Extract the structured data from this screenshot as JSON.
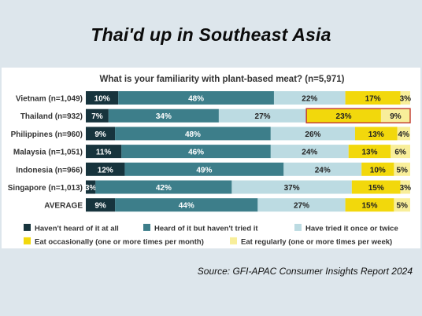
{
  "title": "Thai'd up in Southeast Asia",
  "source": "Source: GFI-APAC Consumer Insights Report 2024",
  "colors": {
    "background": "#dde6ec",
    "panel": "#ffffff",
    "highlight_border": "#c0392b"
  },
  "chart_data": {
    "type": "bar",
    "orientation": "horizontal",
    "stacked": true,
    "title": "What is your familiarity with plant-based meat? (n=5,971)",
    "categories": [
      "Vietnam (n=1,049)",
      "Thailand (n=932)",
      "Philippines (n=960)",
      "Malaysia (n=1,051)",
      "Indonesia (n=966)",
      "Singapore (n=1,013)",
      "AVERAGE"
    ],
    "series": [
      {
        "name": "Haven't heard of it at all",
        "color": "#17343d",
        "text_color": "#ffffff",
        "values": [
          10,
          7,
          9,
          11,
          12,
          3,
          9
        ]
      },
      {
        "name": "Heard of it but haven't tried it",
        "color": "#3d7e8a",
        "text_color": "#ffffff",
        "values": [
          48,
          34,
          48,
          46,
          49,
          42,
          44
        ]
      },
      {
        "name": "Have tried it once or twice",
        "color": "#bcdbe2",
        "text_color": "#222222",
        "values": [
          22,
          27,
          26,
          24,
          24,
          37,
          27
        ]
      },
      {
        "name": "Eat occasionally (one or more times per month)",
        "color": "#f2d80c",
        "text_color": "#222222",
        "values": [
          17,
          23,
          13,
          13,
          10,
          15,
          15
        ]
      },
      {
        "name": "Eat regularly (one or more times per week)",
        "color": "#f8ee9a",
        "text_color": "#222222",
        "values": [
          3,
          9,
          4,
          6,
          5,
          3,
          5
        ]
      }
    ],
    "data_label_format": "{v}%",
    "highlight": {
      "category": "Thailand (n=932)",
      "series": [
        "Eat occasionally (one or more times per month)",
        "Eat regularly (one or more times per week)"
      ]
    },
    "legend": "bottom",
    "grid": false
  }
}
